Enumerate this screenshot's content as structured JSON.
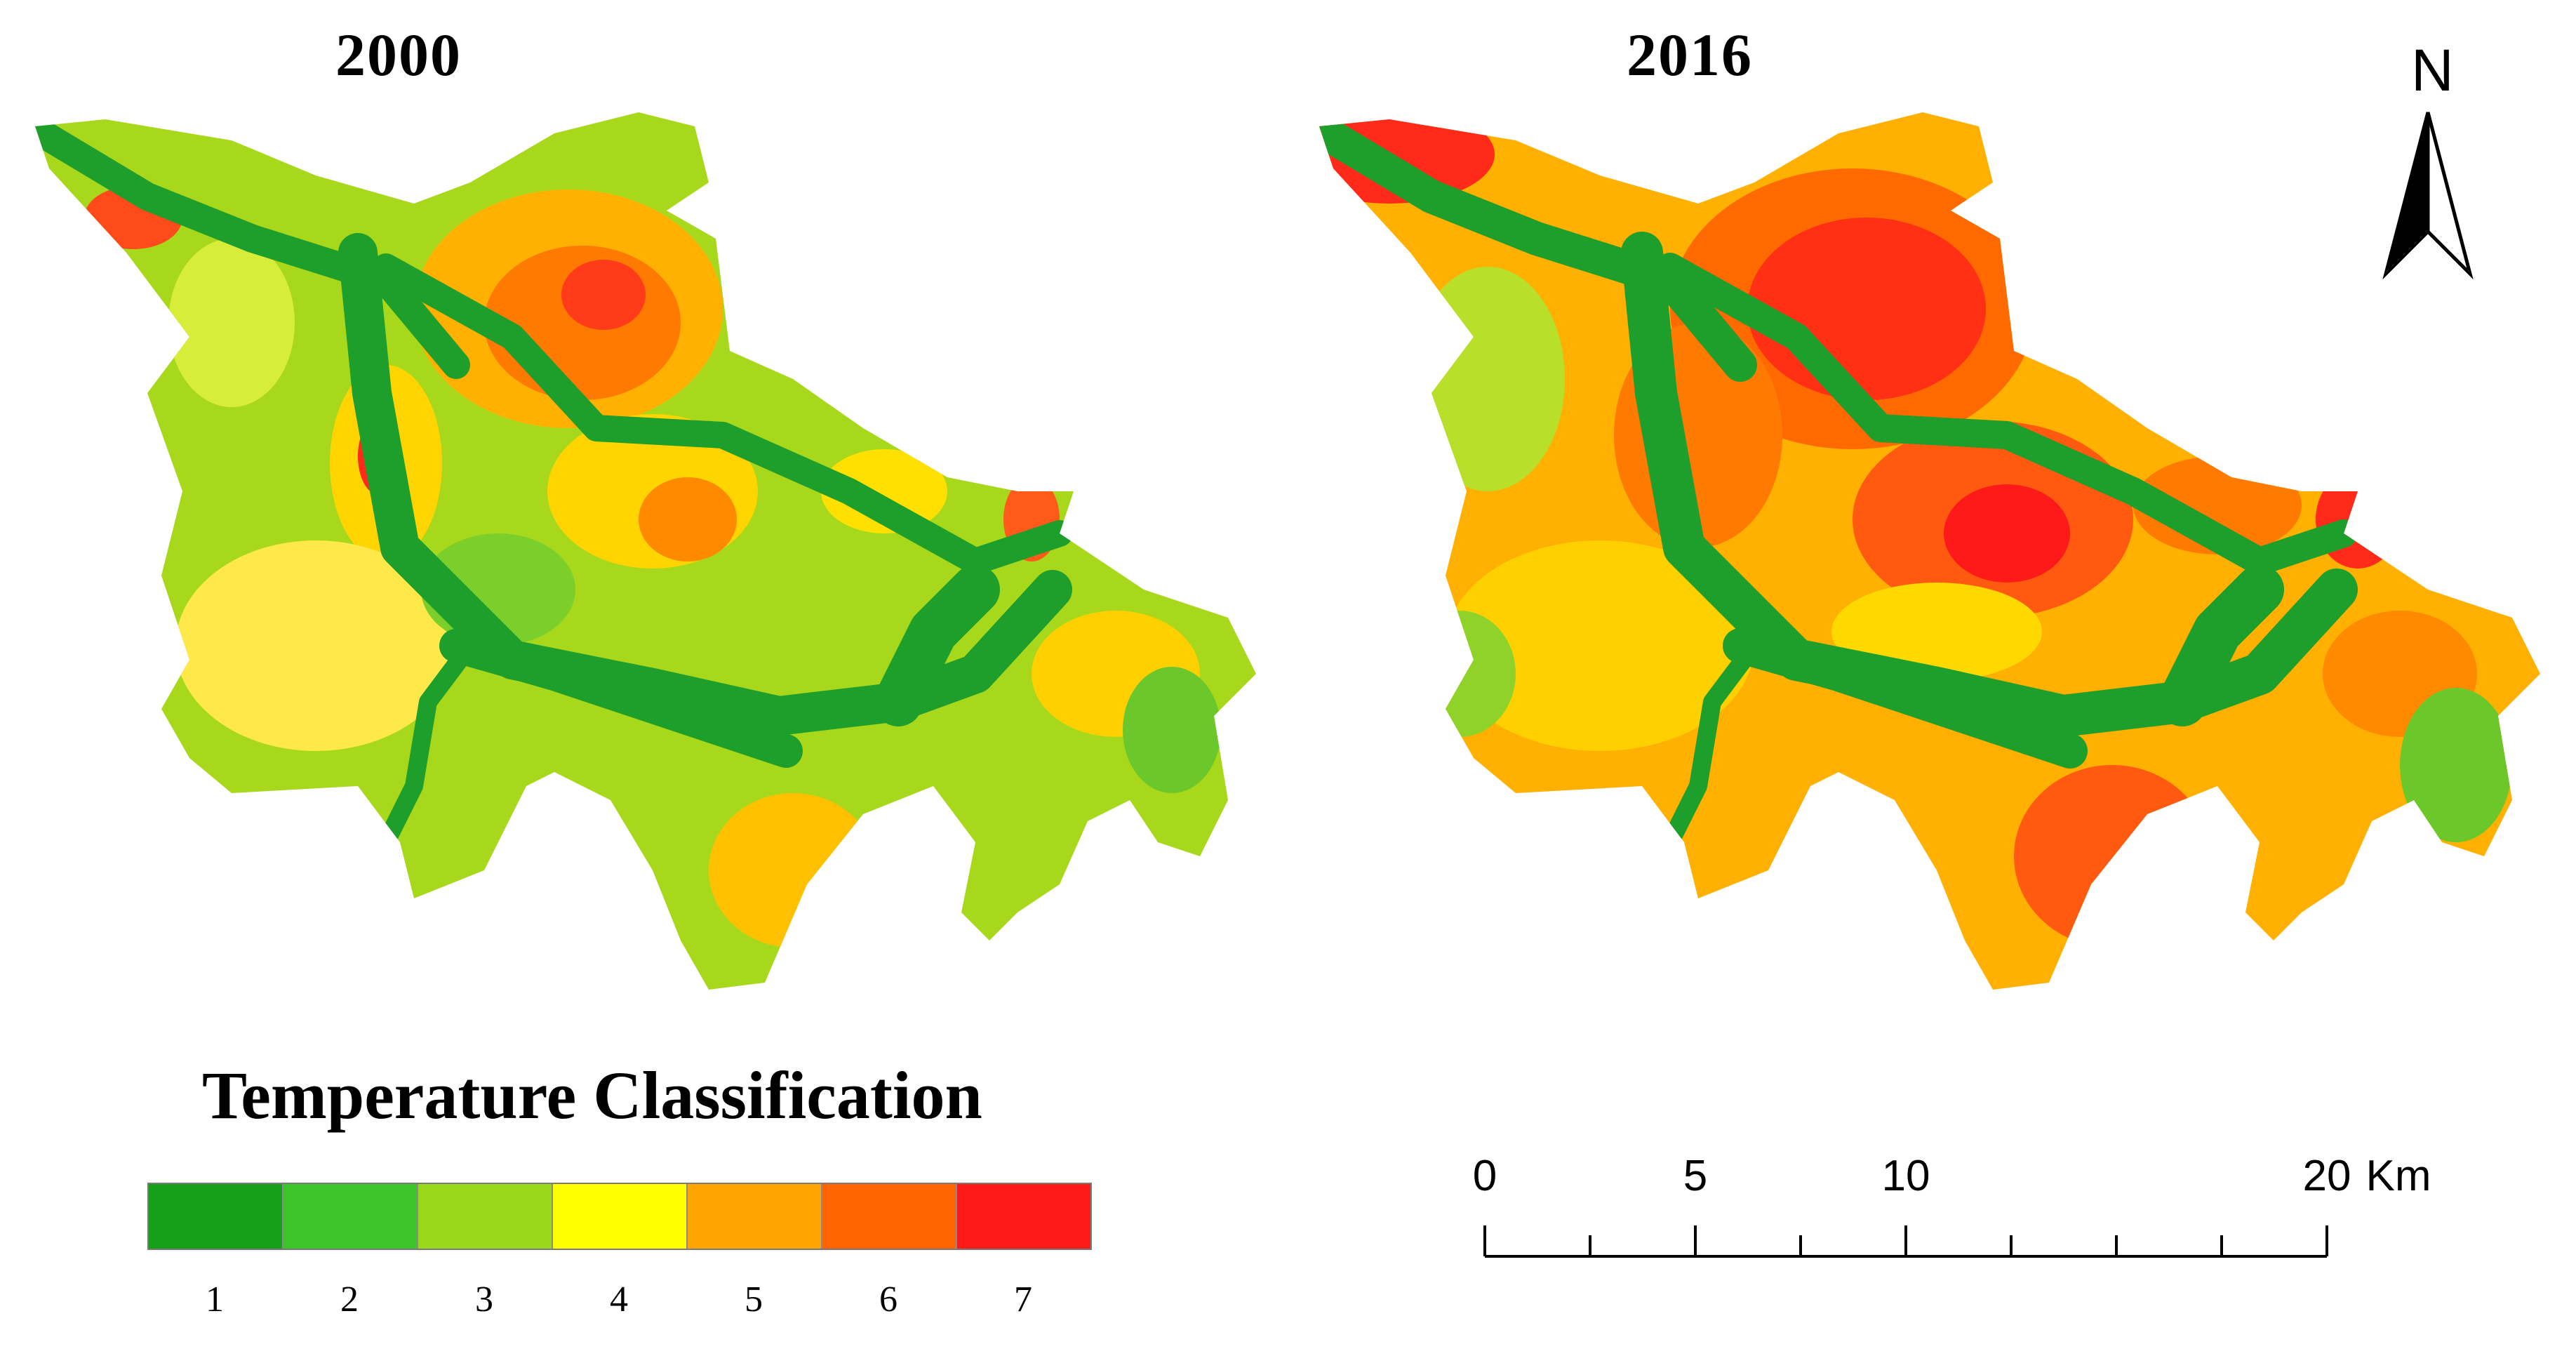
{
  "maps": [
    {
      "title": "2000"
    },
    {
      "title": "2016"
    }
  ],
  "north_arrow": {
    "label": "N"
  },
  "legend": {
    "title": "Temperature Classification",
    "classes": [
      {
        "label": "1",
        "color": "#16a019"
      },
      {
        "label": "2",
        "color": "#3cc42a"
      },
      {
        "label": "3",
        "color": "#9ad81c"
      },
      {
        "label": "4",
        "color": "#ffff00"
      },
      {
        "label": "5",
        "color": "#ffa500"
      },
      {
        "label": "6",
        "color": "#ff6400"
      },
      {
        "label": "7",
        "color": "#ff1a1a"
      }
    ]
  },
  "scale_bar": {
    "labels": [
      "0",
      "5",
      "10",
      "20"
    ],
    "unit": "Km",
    "values_km": [
      0,
      5,
      10,
      20
    ]
  },
  "colors": {
    "river": "#1e9e2a",
    "background": "#ffffff"
  }
}
